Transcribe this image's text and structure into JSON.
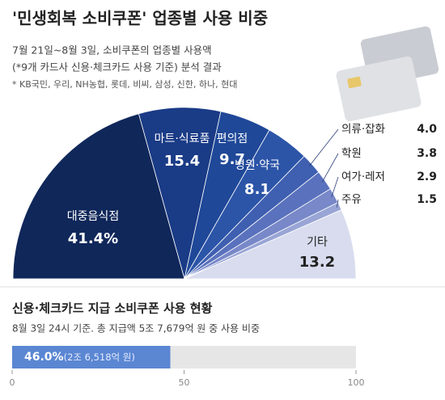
{
  "chart_data": [
    {
      "type": "half-pie",
      "title": "'민생회복 소비쿠폰' 업종별 사용 비중",
      "subtitle": [
        "7월 21일~8월 3일, 소비쿠폰의 업종별 사용액",
        "(*9개 카드사 신용·체크카드 사용 기준) 분석 결과",
        "* KB국민, 우리, NH농협, 롯데, 비씨, 삼성, 신한, 하나, 현대"
      ],
      "categories": [
        "대중음식점",
        "마트·식료품",
        "편의점",
        "병원·약국",
        "의류·잡화",
        "학원",
        "여가·레저",
        "주유",
        "기타"
      ],
      "values": [
        41.4,
        15.4,
        9.7,
        8.1,
        4.0,
        3.8,
        2.9,
        1.5,
        13.2
      ],
      "value_labels": [
        "41.4%",
        "15.4",
        "9.7",
        "8.1",
        "4.0",
        "3.8",
        "2.9",
        "1.5",
        "13.2"
      ],
      "colors": [
        "#10275a",
        "#1a3b86",
        "#1f4898",
        "#2c55a8",
        "#3f5fb0",
        "#5a72bd",
        "#7888c8",
        "#99a5d5",
        "#d8dcee"
      ]
    },
    {
      "type": "progress-bar",
      "title": "신용·체크카드 지급 소비쿠폰 사용 현황",
      "subtitle": "8월 3일 24시 기준. 총 지급액 5조 7,679억 원 중 사용 비중",
      "values": [
        46.0
      ],
      "value_labels": [
        "46.0%"
      ],
      "annotation": "(2조 6,518억 원)",
      "color": "#5b86d2",
      "track_color": "#e6e6e6",
      "xlim": [
        0,
        100
      ],
      "xticks": [
        0,
        50,
        100
      ]
    }
  ]
}
